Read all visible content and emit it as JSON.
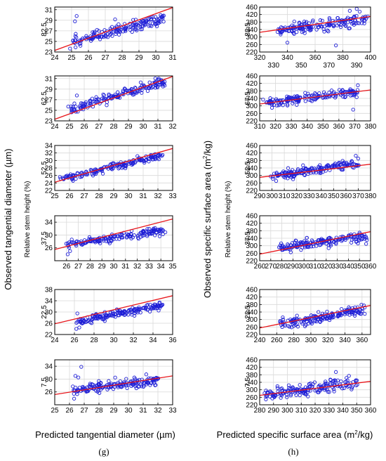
{
  "figure": {
    "left_column": {
      "y_label": "Observed tangential diameter (µm)",
      "sub_label": "Relative stem height (%)",
      "x_label": "Predicted tangential diameter (µm)",
      "panel_letter": "(g)"
    },
    "right_column": {
      "y_label_main": "Observed specific surface area (m",
      "y_label_sup": "2",
      "y_label_end": "/kg)",
      "sub_label": "Relative stem height (%)",
      "x_label_main": "Predicted specific surface area (m",
      "x_label_sup": "2",
      "x_label_end": "/kg)",
      "panel_letter": "(h)"
    }
  },
  "colors": {
    "points": "#1f1fd6",
    "fit_line": "#e8161b",
    "grid": "#d9d9d9"
  },
  "chart_data": [
    {
      "type": "scatter",
      "column": "left",
      "height_label": "82.5",
      "grid": true,
      "xlim": [
        24,
        31
      ],
      "ylim": [
        23,
        31.5
      ],
      "x_ticks": [
        "24",
        "25",
        "26",
        "27",
        "28",
        "29",
        "30",
        "31"
      ],
      "y_ticks": [
        "23",
        "25",
        "27",
        "29",
        "31"
      ],
      "fit_line": [
        [
          24,
          23.3
        ],
        [
          31,
          31.4
        ]
      ],
      "point_trend": [
        [
          25,
          25.0
        ],
        [
          30.5,
          29.3
        ]
      ],
      "spread": 0.8,
      "outliers": [
        [
          25.3,
          29.8
        ],
        [
          25.2,
          28.8
        ]
      ]
    },
    {
      "type": "scatter",
      "column": "left",
      "height_label": "62.5",
      "grid": true,
      "xlim": [
        24,
        32
      ],
      "ylim": [
        23,
        31.5
      ],
      "x_ticks": [
        "24",
        "25",
        "26",
        "27",
        "28",
        "29",
        "30",
        "31",
        "32"
      ],
      "y_ticks": [
        "23",
        "25",
        "27",
        "29",
        "31"
      ],
      "fit_line": [
        [
          24,
          23.3
        ],
        [
          32,
          31.4
        ]
      ],
      "point_trend": [
        [
          25,
          25.2
        ],
        [
          31.5,
          30.4
        ]
      ],
      "spread": 0.6,
      "outliers": [
        [
          25.5,
          27.8
        ]
      ]
    },
    {
      "type": "scatter",
      "column": "left",
      "height_label": "52.5",
      "grid": true,
      "xlim": [
        25,
        33
      ],
      "ylim": [
        22,
        34
      ],
      "x_ticks": [
        "25",
        "26",
        "27",
        "28",
        "29",
        "30",
        "31",
        "32",
        "33"
      ],
      "y_ticks": [
        "22",
        "24",
        "26",
        "28",
        "30",
        "32",
        "34"
      ],
      "fit_line": [
        [
          25,
          24.2
        ],
        [
          33,
          33.2
        ]
      ],
      "point_trend": [
        [
          25.5,
          25.0
        ],
        [
          32.2,
          31.4
        ]
      ],
      "spread": 0.7,
      "outliers": []
    },
    {
      "type": "scatter",
      "column": "left",
      "height_label": "37.5",
      "grid": true,
      "xlim": [
        25,
        35
      ],
      "ylim": [
        22,
        36
      ],
      "x_ticks": [
        "26",
        "27",
        "28",
        "29",
        "30",
        "31",
        "32",
        "33",
        "34",
        "35"
      ],
      "y_ticks": [
        "26",
        "30",
        "34"
      ],
      "fit_line": [
        [
          25,
          25.5
        ],
        [
          35,
          35.0
        ]
      ],
      "point_trend": [
        [
          26,
          27.0
        ],
        [
          34.2,
          31.5
        ]
      ],
      "spread": 0.8,
      "outliers": [
        [
          26.1,
          24.0
        ],
        [
          26.3,
          25.0
        ]
      ]
    },
    {
      "type": "scatter",
      "column": "left",
      "height_label": "22.5",
      "grid": true,
      "xlim": [
        24,
        36
      ],
      "ylim": [
        22,
        38
      ],
      "x_ticks": [
        "24",
        "26",
        "28",
        "30",
        "32",
        "34",
        "36"
      ],
      "y_ticks": [
        "22",
        "26",
        "30",
        "34",
        "38"
      ],
      "fit_line": [
        [
          24,
          25.8
        ],
        [
          36,
          35.8
        ]
      ],
      "point_trend": [
        [
          26.2,
          26.5
        ],
        [
          35,
          32.5
        ]
      ],
      "spread": 1.0,
      "outliers": [
        [
          26.2,
          24.0
        ],
        [
          26.5,
          24.5
        ],
        [
          26.3,
          29.5
        ]
      ]
    },
    {
      "type": "scatter",
      "column": "left",
      "height_label": "7.5",
      "grid": true,
      "xlim": [
        25,
        33
      ],
      "ylim": [
        22,
        36
      ],
      "x_ticks": [
        "25",
        "26",
        "27",
        "28",
        "29",
        "30",
        "31",
        "32",
        "33"
      ],
      "y_ticks": [
        "26",
        "30",
        "34"
      ],
      "fit_line": [
        [
          25,
          25.2
        ],
        [
          33,
          31.0
        ]
      ],
      "point_trend": [
        [
          26.3,
          26.5
        ],
        [
          32.0,
          29.7
        ]
      ],
      "spread": 1.0,
      "outliers": [
        [
          26.8,
          33.8
        ],
        [
          26.4,
          31.0
        ],
        [
          26.6,
          30.5
        ]
      ]
    },
    {
      "type": "scatter",
      "column": "right",
      "height_label": "82.5",
      "grid": true,
      "xlim": [
        320,
        400
      ],
      "ylim": [
        220,
        460
      ],
      "x_ticks": [
        "320",
        "340",
        "360",
        "380",
        "400"
      ],
      "x_ticks_minor": [
        "330",
        "350",
        "370",
        "390"
      ],
      "y_ticks": [
        "220",
        "260",
        "300",
        "340",
        "380",
        "420",
        "460"
      ],
      "fit_line": [
        [
          320,
          325
        ],
        [
          400,
          410
        ]
      ],
      "point_trend": [
        [
          333,
          330
        ],
        [
          398,
          395
        ]
      ],
      "spread": 22,
      "outliers": [
        [
          390,
          450
        ],
        [
          385,
          440
        ],
        [
          375,
          255
        ],
        [
          340,
          270
        ]
      ]
    },
    {
      "type": "scatter",
      "column": "right",
      "height_label": "67.5",
      "grid": true,
      "xlim": [
        310,
        380
      ],
      "ylim": [
        220,
        460
      ],
      "x_ticks": [
        "310",
        "320",
        "330",
        "340",
        "350",
        "360",
        "370",
        "380"
      ],
      "y_ticks": [
        "220",
        "260",
        "300",
        "340",
        "380",
        "420",
        "460"
      ],
      "fit_line": [
        [
          310,
          310
        ],
        [
          380,
          385
        ]
      ],
      "point_trend": [
        [
          314,
          315
        ],
        [
          372,
          375
        ]
      ],
      "spread": 16,
      "outliers": [
        [
          369,
          280
        ],
        [
          372,
          410
        ]
      ]
    },
    {
      "type": "scatter",
      "column": "right",
      "height_label": "52.5",
      "grid": true,
      "xlim": [
        290,
        380
      ],
      "ylim": [
        220,
        460
      ],
      "x_ticks": [
        "290",
        "300",
        "310",
        "320",
        "330",
        "340",
        "350",
        "360",
        "370",
        "380"
      ],
      "y_ticks": [
        "220",
        "260",
        "300",
        "340",
        "380",
        "420",
        "460"
      ],
      "fit_line": [
        [
          290,
          290
        ],
        [
          380,
          360
        ]
      ],
      "point_trend": [
        [
          300,
          295
        ],
        [
          370,
          370
        ]
      ],
      "spread": 18,
      "outliers": [
        [
          368,
          405
        ],
        [
          370,
          390
        ]
      ]
    },
    {
      "type": "scatter",
      "column": "right",
      "height_label": "37.5",
      "grid": true,
      "xlim": [
        260,
        360
      ],
      "ylim": [
        220,
        460
      ],
      "x_ticks": [
        "260",
        "270",
        "280",
        "290",
        "300",
        "310",
        "320",
        "330",
        "340",
        "350",
        "360"
      ],
      "y_ticks": [
        "220",
        "260",
        "300",
        "340",
        "380",
        "420",
        "460"
      ],
      "fit_line": [
        [
          260,
          255
        ],
        [
          360,
          375
        ]
      ],
      "point_trend": [
        [
          278,
          290
        ],
        [
          356,
          350
        ]
      ],
      "spread": 18,
      "outliers": [
        [
          356,
          310
        ]
      ]
    },
    {
      "type": "scatter",
      "column": "right",
      "height_label": "22.5",
      "grid": true,
      "xlim": [
        240,
        370
      ],
      "ylim": [
        220,
        460
      ],
      "x_ticks": [
        "240",
        "260",
        "280",
        "300",
        "320",
        "340",
        "360"
      ],
      "y_ticks": [
        "220",
        "260",
        "300",
        "340",
        "380",
        "420",
        "460"
      ],
      "fit_line": [
        [
          240,
          255
        ],
        [
          370,
          375
        ]
      ],
      "point_trend": [
        [
          265,
          270
        ],
        [
          362,
          355
        ]
      ],
      "spread": 20,
      "outliers": []
    },
    {
      "type": "scatter",
      "column": "right",
      "height_label": "7.5",
      "grid": true,
      "xlim": [
        280,
        360
      ],
      "ylim": [
        220,
        460
      ],
      "x_ticks": [
        "280",
        "290",
        "300",
        "310",
        "320",
        "330",
        "340",
        "350",
        "360"
      ],
      "y_ticks": [
        "220",
        "260",
        "300",
        "340",
        "380",
        "420",
        "460"
      ],
      "fit_line": [
        [
          280,
          270
        ],
        [
          360,
          345
        ]
      ],
      "point_trend": [
        [
          283,
          270
        ],
        [
          350,
          340
        ]
      ],
      "spread": 24,
      "outliers": [
        [
          335,
          395
        ]
      ]
    }
  ]
}
